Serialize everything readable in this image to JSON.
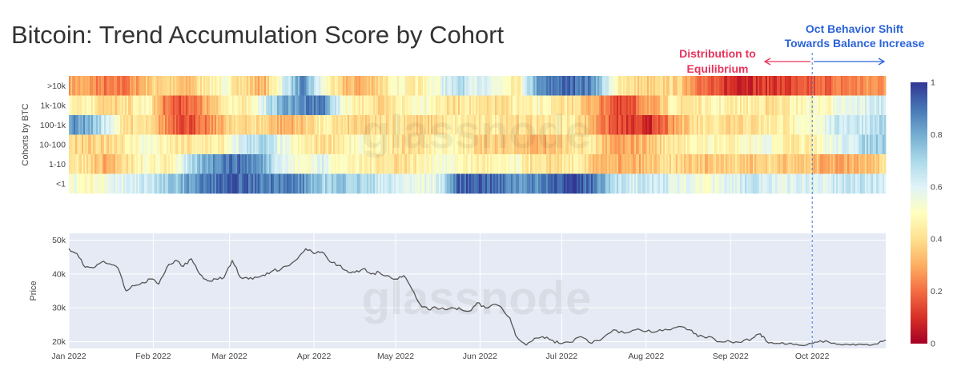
{
  "chart_data": [
    {
      "type": "heatmap",
      "title": "Bitcoin: Trend Accumulation Score by Cohort",
      "ylabel": "Cohorts by BTC",
      "rows": [
        ">10k",
        "1k-10k",
        "100-1k",
        "10-100",
        "1-10",
        "<1"
      ],
      "x": [
        "2022-01-01",
        "2022-01-08",
        "2022-01-15",
        "2022-01-22",
        "2022-01-29",
        "2022-02-05",
        "2022-02-12",
        "2022-02-19",
        "2022-02-26",
        "2022-03-05",
        "2022-03-12",
        "2022-03-19",
        "2022-03-26",
        "2022-04-02",
        "2022-04-09",
        "2022-04-16",
        "2022-04-23",
        "2022-04-30",
        "2022-05-07",
        "2022-05-14",
        "2022-05-21",
        "2022-05-28",
        "2022-06-04",
        "2022-06-11",
        "2022-06-18",
        "2022-06-25",
        "2022-07-02",
        "2022-07-09",
        "2022-07-16",
        "2022-07-23",
        "2022-07-30",
        "2022-08-06",
        "2022-08-13",
        "2022-08-20",
        "2022-08-27",
        "2022-09-03",
        "2022-09-10",
        "2022-09-17",
        "2022-09-24",
        "2022-10-01",
        "2022-10-08",
        "2022-10-15",
        "2022-10-22"
      ],
      "z": [
        [
          0.3,
          0.28,
          0.2,
          0.22,
          0.35,
          0.4,
          0.3,
          0.45,
          0.5,
          0.4,
          0.3,
          0.6,
          0.85,
          0.55,
          0.35,
          0.3,
          0.4,
          0.5,
          0.45,
          0.55,
          0.7,
          0.6,
          0.55,
          0.4,
          0.8,
          0.9,
          0.92,
          0.85,
          0.5,
          0.4,
          0.35,
          0.4,
          0.3,
          0.15,
          0.1,
          0.1,
          0.12,
          0.12,
          0.15,
          0.2,
          0.22,
          0.25,
          0.28
        ],
        [
          0.45,
          0.5,
          0.35,
          0.4,
          0.5,
          0.2,
          0.15,
          0.3,
          0.45,
          0.45,
          0.6,
          0.8,
          0.85,
          0.9,
          0.55,
          0.45,
          0.4,
          0.45,
          0.5,
          0.45,
          0.4,
          0.45,
          0.4,
          0.45,
          0.5,
          0.45,
          0.4,
          0.3,
          0.15,
          0.18,
          0.3,
          0.45,
          0.4,
          0.5,
          0.45,
          0.45,
          0.4,
          0.45,
          0.5,
          0.5,
          0.55,
          0.6,
          0.65
        ],
        [
          0.85,
          0.8,
          0.6,
          0.4,
          0.4,
          0.25,
          0.15,
          0.2,
          0.35,
          0.4,
          0.4,
          0.3,
          0.35,
          0.45,
          0.4,
          0.35,
          0.4,
          0.45,
          0.35,
          0.4,
          0.45,
          0.4,
          0.45,
          0.4,
          0.4,
          0.45,
          0.45,
          0.3,
          0.15,
          0.1,
          0.1,
          0.25,
          0.4,
          0.45,
          0.4,
          0.4,
          0.45,
          0.45,
          0.5,
          0.6,
          0.65,
          0.65,
          0.7
        ],
        [
          0.4,
          0.35,
          0.4,
          0.45,
          0.55,
          0.45,
          0.4,
          0.45,
          0.45,
          0.65,
          0.7,
          0.55,
          0.45,
          0.4,
          0.45,
          0.5,
          0.45,
          0.4,
          0.4,
          0.5,
          0.45,
          0.4,
          0.35,
          0.4,
          0.3,
          0.35,
          0.4,
          0.45,
          0.25,
          0.3,
          0.35,
          0.45,
          0.45,
          0.5,
          0.45,
          0.5,
          0.55,
          0.45,
          0.45,
          0.55,
          0.6,
          0.7,
          0.75
        ],
        [
          0.45,
          0.4,
          0.3,
          0.4,
          0.5,
          0.45,
          0.6,
          0.8,
          0.9,
          0.9,
          0.8,
          0.6,
          0.5,
          0.6,
          0.5,
          0.45,
          0.45,
          0.4,
          0.45,
          0.55,
          0.5,
          0.45,
          0.45,
          0.5,
          0.4,
          0.4,
          0.45,
          0.35,
          0.3,
          0.3,
          0.35,
          0.4,
          0.35,
          0.35,
          0.4,
          0.35,
          0.4,
          0.35,
          0.35,
          0.3,
          0.3,
          0.35,
          0.4
        ],
        [
          0.55,
          0.5,
          0.55,
          0.6,
          0.65,
          0.7,
          0.8,
          0.88,
          0.92,
          0.92,
          0.88,
          0.9,
          0.85,
          0.7,
          0.75,
          0.7,
          0.65,
          0.6,
          0.55,
          0.6,
          0.92,
          0.95,
          0.9,
          0.85,
          0.85,
          0.95,
          0.95,
          0.9,
          0.7,
          0.6,
          0.65,
          0.6,
          0.55,
          0.55,
          0.6,
          0.65,
          0.6,
          0.6,
          0.6,
          0.6,
          0.65,
          0.65,
          0.65
        ]
      ],
      "zlim": [
        0,
        1
      ],
      "colorbar_ticks": [
        0,
        0.2,
        0.4,
        0.6,
        0.8,
        1
      ],
      "colorbar_tick_labels": [
        "0",
        "0.2",
        "0.4",
        "0.6",
        "0.8",
        "1"
      ],
      "colorscale": [
        {
          "v": 0.0,
          "color": "#a50026"
        },
        {
          "v": 0.1,
          "color": "#d73027"
        },
        {
          "v": 0.2,
          "color": "#f46d43"
        },
        {
          "v": 0.3,
          "color": "#fdae61"
        },
        {
          "v": 0.4,
          "color": "#fee090"
        },
        {
          "v": 0.5,
          "color": "#ffffbf"
        },
        {
          "v": 0.6,
          "color": "#e0f3f8"
        },
        {
          "v": 0.7,
          "color": "#abd9e9"
        },
        {
          "v": 0.8,
          "color": "#74add1"
        },
        {
          "v": 0.9,
          "color": "#4575b4"
        },
        {
          "v": 1.0,
          "color": "#313695"
        }
      ],
      "annotations": [
        {
          "lines": [
            "Distribution to",
            "Equilibrium"
          ],
          "color": "#e8345b",
          "arrow_from": "2022-09-01",
          "arrow_to": "2022-10-01"
        },
        {
          "lines": [
            "Oct Behavior Shift",
            "Towards Balance Increase"
          ],
          "color": "#2c63d8",
          "arrow_from": "2022-10-01",
          "arrow_to": "2022-10-28"
        }
      ],
      "marker_date": "2022-10-01",
      "marker_color": "#3d72e0"
    },
    {
      "type": "line",
      "ylabel": "Price",
      "yticks": [
        20000,
        30000,
        40000,
        50000
      ],
      "ytick_labels": [
        "20k",
        "30k",
        "40k",
        "50k"
      ],
      "ylim": [
        18000,
        52000
      ],
      "xlim": [
        "2022-01-01",
        "2022-10-28"
      ],
      "xticks": [
        "2022-01-01",
        "2022-02-01",
        "2022-03-01",
        "2022-04-01",
        "2022-05-01",
        "2022-06-01",
        "2022-07-01",
        "2022-08-01",
        "2022-09-01",
        "2022-10-01"
      ],
      "xtick_labels": [
        "Jan 2022",
        "Feb 2022",
        "Mar 2022",
        "Apr 2022",
        "May 2022",
        "Jun 2022",
        "Jul 2022",
        "Aug 2022",
        "Sep 2022",
        "Oct 2022"
      ],
      "grid": true,
      "line_color": "#555555",
      "points": [
        {
          "x": "2022-01-01",
          "y": 47500
        },
        {
          "x": "2022-01-04",
          "y": 46000
        },
        {
          "x": "2022-01-07",
          "y": 42000
        },
        {
          "x": "2022-01-10",
          "y": 41800
        },
        {
          "x": "2022-01-13",
          "y": 43500
        },
        {
          "x": "2022-01-16",
          "y": 43000
        },
        {
          "x": "2022-01-19",
          "y": 41800
        },
        {
          "x": "2022-01-22",
          "y": 35000
        },
        {
          "x": "2022-01-25",
          "y": 36500
        },
        {
          "x": "2022-01-28",
          "y": 37500
        },
        {
          "x": "2022-01-31",
          "y": 38500
        },
        {
          "x": "2022-02-03",
          "y": 37000
        },
        {
          "x": "2022-02-06",
          "y": 42000
        },
        {
          "x": "2022-02-09",
          "y": 44000
        },
        {
          "x": "2022-02-12",
          "y": 42200
        },
        {
          "x": "2022-02-15",
          "y": 44500
        },
        {
          "x": "2022-02-18",
          "y": 40000
        },
        {
          "x": "2022-02-21",
          "y": 38000
        },
        {
          "x": "2022-02-24",
          "y": 38500
        },
        {
          "x": "2022-02-27",
          "y": 39000
        },
        {
          "x": "2022-03-02",
          "y": 44000
        },
        {
          "x": "2022-03-05",
          "y": 39000
        },
        {
          "x": "2022-03-08",
          "y": 38500
        },
        {
          "x": "2022-03-11",
          "y": 39000
        },
        {
          "x": "2022-03-14",
          "y": 39500
        },
        {
          "x": "2022-03-17",
          "y": 41000
        },
        {
          "x": "2022-03-20",
          "y": 41500
        },
        {
          "x": "2022-03-23",
          "y": 42500
        },
        {
          "x": "2022-03-26",
          "y": 44500
        },
        {
          "x": "2022-03-29",
          "y": 47500
        },
        {
          "x": "2022-04-01",
          "y": 46000
        },
        {
          "x": "2022-04-04",
          "y": 46500
        },
        {
          "x": "2022-04-07",
          "y": 43500
        },
        {
          "x": "2022-04-10",
          "y": 42500
        },
        {
          "x": "2022-04-13",
          "y": 41000
        },
        {
          "x": "2022-04-16",
          "y": 40500
        },
        {
          "x": "2022-04-19",
          "y": 41500
        },
        {
          "x": "2022-04-22",
          "y": 40000
        },
        {
          "x": "2022-04-25",
          "y": 40500
        },
        {
          "x": "2022-04-28",
          "y": 39500
        },
        {
          "x": "2022-05-01",
          "y": 38500
        },
        {
          "x": "2022-05-04",
          "y": 39500
        },
        {
          "x": "2022-05-07",
          "y": 35500
        },
        {
          "x": "2022-05-10",
          "y": 31000
        },
        {
          "x": "2022-05-13",
          "y": 29500
        },
        {
          "x": "2022-05-16",
          "y": 30000
        },
        {
          "x": "2022-05-19",
          "y": 29500
        },
        {
          "x": "2022-05-22",
          "y": 30000
        },
        {
          "x": "2022-05-25",
          "y": 29500
        },
        {
          "x": "2022-05-28",
          "y": 29000
        },
        {
          "x": "2022-05-31",
          "y": 31500
        },
        {
          "x": "2022-06-03",
          "y": 30000
        },
        {
          "x": "2022-06-06",
          "y": 31000
        },
        {
          "x": "2022-06-09",
          "y": 30000
        },
        {
          "x": "2022-06-12",
          "y": 27000
        },
        {
          "x": "2022-06-14",
          "y": 22000
        },
        {
          "x": "2022-06-18",
          "y": 19000
        },
        {
          "x": "2022-06-21",
          "y": 21000
        },
        {
          "x": "2022-06-24",
          "y": 21500
        },
        {
          "x": "2022-06-27",
          "y": 20500
        },
        {
          "x": "2022-06-30",
          "y": 19500
        },
        {
          "x": "2022-07-04",
          "y": 19800
        },
        {
          "x": "2022-07-08",
          "y": 21500
        },
        {
          "x": "2022-07-12",
          "y": 19500
        },
        {
          "x": "2022-07-16",
          "y": 21000
        },
        {
          "x": "2022-07-20",
          "y": 23500
        },
        {
          "x": "2022-07-24",
          "y": 22500
        },
        {
          "x": "2022-07-28",
          "y": 23500
        },
        {
          "x": "2022-08-01",
          "y": 23000
        },
        {
          "x": "2022-08-05",
          "y": 23000
        },
        {
          "x": "2022-08-09",
          "y": 23500
        },
        {
          "x": "2022-08-13",
          "y": 24500
        },
        {
          "x": "2022-08-17",
          "y": 23500
        },
        {
          "x": "2022-08-20",
          "y": 21500
        },
        {
          "x": "2022-08-24",
          "y": 21500
        },
        {
          "x": "2022-08-28",
          "y": 20000
        },
        {
          "x": "2022-09-01",
          "y": 20000
        },
        {
          "x": "2022-09-05",
          "y": 19800
        },
        {
          "x": "2022-09-09",
          "y": 21000
        },
        {
          "x": "2022-09-12",
          "y": 22300
        },
        {
          "x": "2022-09-14",
          "y": 20200
        },
        {
          "x": "2022-09-18",
          "y": 19500
        },
        {
          "x": "2022-09-22",
          "y": 19300
        },
        {
          "x": "2022-09-26",
          "y": 19000
        },
        {
          "x": "2022-09-30",
          "y": 19500
        },
        {
          "x": "2022-10-04",
          "y": 20300
        },
        {
          "x": "2022-10-08",
          "y": 19500
        },
        {
          "x": "2022-10-12",
          "y": 19000
        },
        {
          "x": "2022-10-16",
          "y": 19300
        },
        {
          "x": "2022-10-20",
          "y": 19100
        },
        {
          "x": "2022-10-24",
          "y": 19300
        },
        {
          "x": "2022-10-28",
          "y": 20500
        }
      ]
    }
  ],
  "watermark": "glassnode"
}
